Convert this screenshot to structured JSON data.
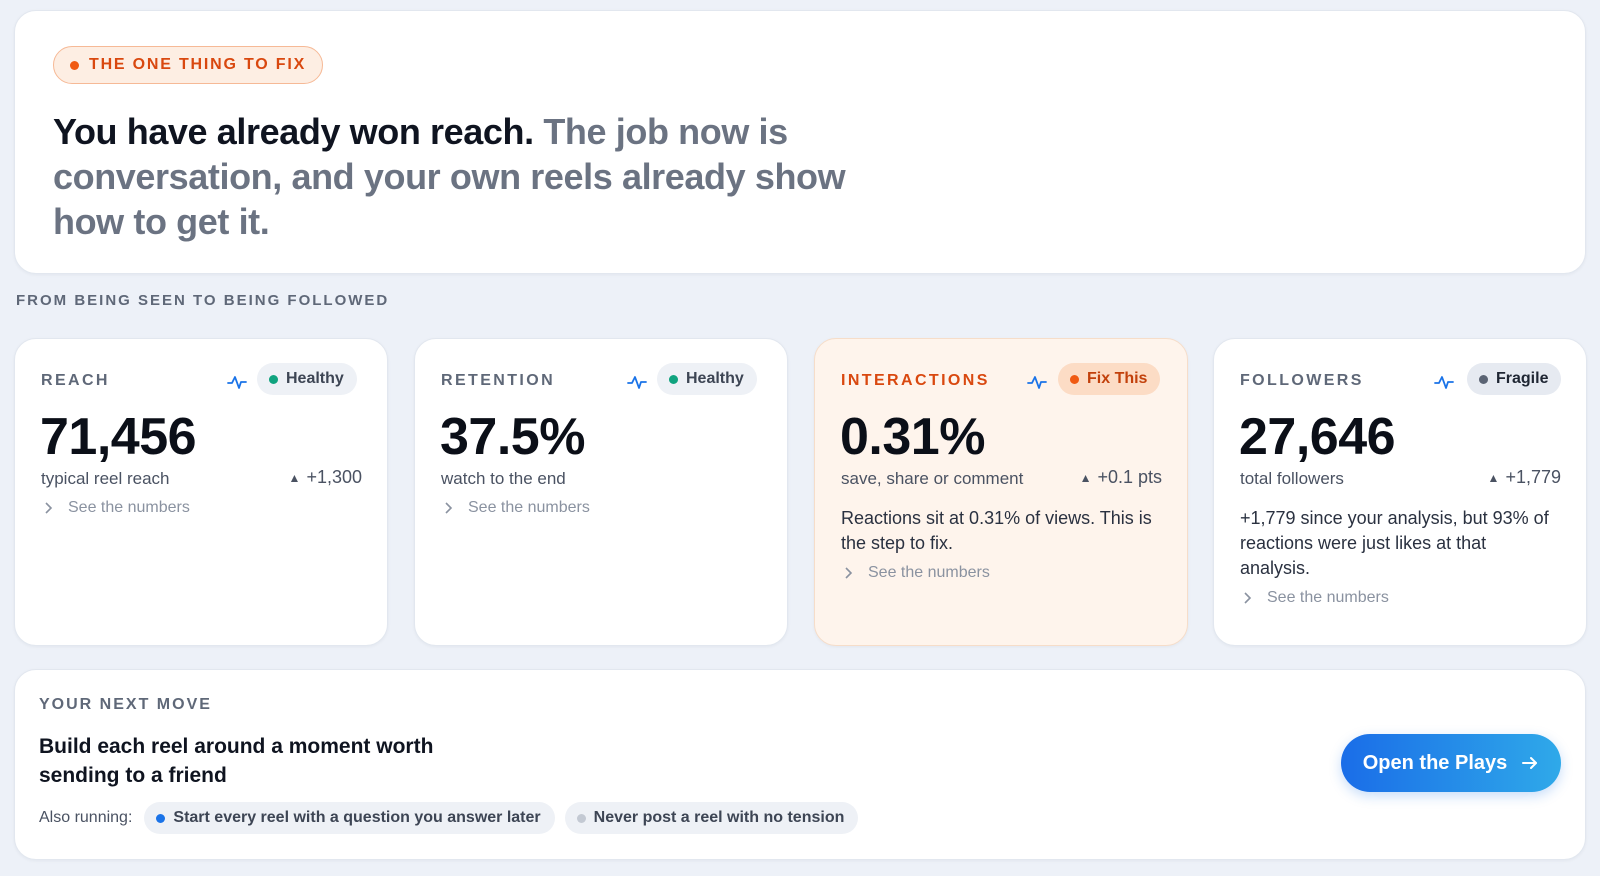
{
  "hero": {
    "badge": "THE ONE THING TO FIX",
    "headline_strong": "You have already won reach.",
    "headline_muted": "The job now is conversation, and your own reels already show how to get it."
  },
  "section_label": "FROM BEING SEEN TO BEING FOLLOWED",
  "metrics": [
    {
      "title": "REACH",
      "status": "Healthy",
      "value": "71,456",
      "sub": "typical reel reach",
      "delta": "+1,300",
      "description": "",
      "link": "See the numbers"
    },
    {
      "title": "RETENTION",
      "status": "Healthy",
      "value": "37.5%",
      "sub": "watch to the end",
      "delta": "",
      "description": "",
      "link": "See the numbers"
    },
    {
      "title": "INTERACTIONS",
      "status": "Fix This",
      "value": "0.31%",
      "sub": "save, share or comment",
      "delta": "+0.1 pts",
      "description": "Reactions sit at 0.31% of views. This is the step to fix.",
      "link": "See the numbers"
    },
    {
      "title": "FOLLOWERS",
      "status": "Fragile",
      "value": "27,646",
      "sub": "total followers",
      "delta": "+1,779",
      "description": "+1,779 since your analysis, but 93% of reactions were just likes at that analysis.",
      "link": "See the numbers"
    }
  ],
  "next_move": {
    "title": "YOUR NEXT MOVE",
    "text": "Build each reel around a moment worth sending to a friend",
    "also_label": "Also running:",
    "also_items": [
      "Start every reel with a question you answer later",
      "Never post a reel with no tension"
    ],
    "cta": "Open the Plays"
  },
  "colors": {
    "accent_orange": "#f05a12",
    "healthy_green": "#10a37f",
    "cta_blue": "#1a6de8",
    "pulse_blue": "#1a73e8"
  },
  "icons": {
    "pulse": "activity-pulse-icon",
    "link": "chevron-right-icon",
    "delta": "triangle-up-icon",
    "cta": "arrow-right-icon"
  }
}
